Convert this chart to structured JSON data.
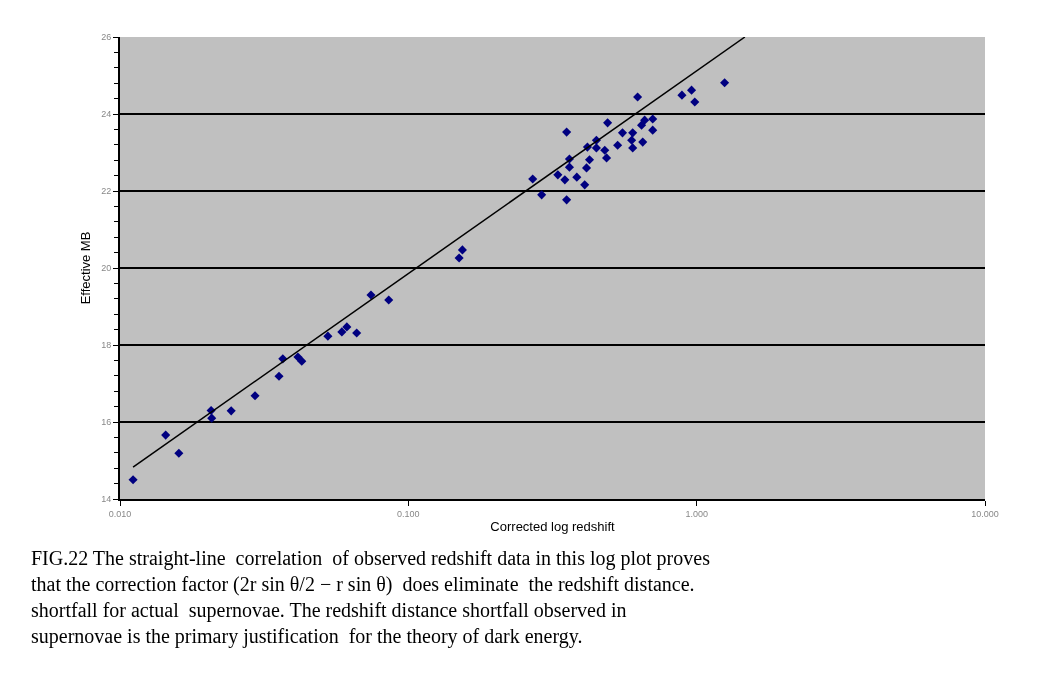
{
  "chart_data": {
    "type": "scatter",
    "xlabel": "Corrected log redshift",
    "ylabel": "Effective MB",
    "log": "x",
    "grid": "y",
    "xlim": [
      0.01,
      10
    ],
    "xticks": [
      {
        "value": 0.01,
        "label": "0.010"
      },
      {
        "value": 0.1,
        "label": "0.100"
      },
      {
        "value": 1,
        "label": "1.000"
      },
      {
        "value": 10,
        "label": "10.000"
      }
    ],
    "ylim": [
      14,
      26
    ],
    "yticks": [
      14,
      16,
      18,
      20,
      22,
      24,
      26
    ],
    "series": [
      {
        "color": "#000080",
        "marker": "diamond",
        "x": [
          0.0111,
          0.0144,
          0.016,
          0.0207,
          0.0208,
          0.0243,
          0.0294,
          0.0356,
          0.0367,
          0.0414,
          0.0427,
          0.0526,
          0.0588,
          0.0612,
          0.0662,
          0.0742,
          0.0855,
          0.15,
          0.154,
          0.27,
          0.29,
          0.354,
          0.354,
          0.33,
          0.349,
          0.362,
          0.362,
          0.384,
          0.409,
          0.415,
          0.425,
          0.418,
          0.449,
          0.449,
          0.48,
          0.487,
          0.491,
          0.532,
          0.553,
          0.6,
          0.6,
          0.595,
          0.644,
          0.65,
          0.66,
          0.704,
          0.704,
          0.624,
          0.889,
          0.985,
          0.96,
          1.25
        ],
        "values": [
          14.5,
          15.66,
          15.19,
          16.3,
          16.1,
          16.29,
          16.68,
          17.19,
          17.64,
          17.69,
          17.58,
          18.23,
          18.34,
          18.47,
          18.31,
          19.3,
          19.17,
          20.26,
          20.47,
          22.31,
          21.9,
          21.77,
          23.53,
          22.42,
          22.29,
          22.83,
          22.62,
          22.36,
          22.16,
          22.6,
          22.81,
          23.14,
          23.32,
          23.12,
          23.06,
          22.86,
          23.77,
          23.19,
          23.51,
          23.51,
          23.12,
          23.32,
          23.71,
          23.27,
          23.84,
          23.87,
          23.58,
          24.44,
          24.49,
          24.31,
          24.62,
          24.81
        ]
      },
      {
        "type": "line",
        "color": "#000000",
        "marker": "none",
        "line_style": "solid",
        "x": [
          0.0111,
          1.47
        ],
        "values": [
          14.83,
          26
        ]
      }
    ],
    "annotations": [
      "FIG.22 The straight-line  correlation  of observed redshift data in this log plot proves\nthat the correction factor (2r sin θ/2 − r sin θ)  does eliminate  the redshift distance.\nshortfall for actual  supernovae. The redshift distance shortfall observed in\nsupernovae is the primary justification  for the theory of dark energy."
    ]
  }
}
